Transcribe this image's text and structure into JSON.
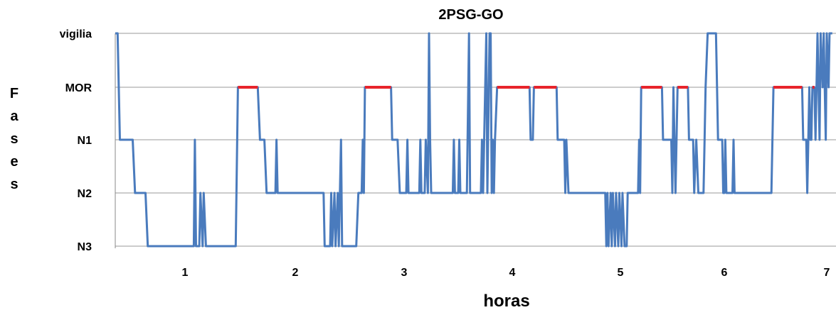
{
  "chart_data": {
    "type": "line",
    "title": "2PSG-GO",
    "xlabel": "horas",
    "ylabel": "Fases",
    "y_categories": [
      "N3",
      "N2",
      "N1",
      "MOR",
      "vigilia"
    ],
    "x_ticks": [
      "1",
      "2",
      "3",
      "4",
      "5",
      "6",
      "7"
    ],
    "xlim": [
      0.4,
      7.1
    ],
    "grid": true,
    "colors": {
      "series": "#4a7bbd",
      "mor": "#e8242b",
      "grid": "#999999",
      "axis": "#888888"
    },
    "series": [
      {
        "points": [
          [
            0.4,
            "vigilia"
          ],
          [
            0.42,
            "vigilia"
          ],
          [
            0.44,
            "N1"
          ],
          [
            0.55,
            "N1"
          ],
          [
            0.57,
            "N2"
          ],
          [
            0.66,
            "N2"
          ],
          [
            0.68,
            "N3"
          ],
          [
            1.08,
            "N3"
          ],
          [
            1.09,
            "N1"
          ],
          [
            1.1,
            "N3"
          ],
          [
            1.13,
            "N3"
          ],
          [
            1.14,
            "N2"
          ],
          [
            1.16,
            "N3"
          ],
          [
            1.17,
            "N2"
          ],
          [
            1.19,
            "N3"
          ],
          [
            1.46,
            "N3"
          ],
          [
            1.48,
            "MOR"
          ],
          [
            1.66,
            "MOR"
          ],
          [
            1.68,
            "N1"
          ],
          [
            1.72,
            "N1"
          ],
          [
            1.74,
            "N2"
          ],
          [
            1.82,
            "N2"
          ],
          [
            1.83,
            "N1"
          ],
          [
            1.84,
            "N2"
          ],
          [
            2.26,
            "N2"
          ],
          [
            2.27,
            "N3"
          ],
          [
            2.32,
            "N3"
          ],
          [
            2.33,
            "N2"
          ],
          [
            2.34,
            "N3"
          ],
          [
            2.36,
            "N2"
          ],
          [
            2.37,
            "N3"
          ],
          [
            2.39,
            "N2"
          ],
          [
            2.4,
            "N3"
          ],
          [
            2.42,
            "N1"
          ],
          [
            2.43,
            "N3"
          ],
          [
            2.56,
            "N3"
          ],
          [
            2.58,
            "N2"
          ],
          [
            2.61,
            "N2"
          ],
          [
            2.62,
            "N1"
          ],
          [
            2.63,
            "N2"
          ],
          [
            2.64,
            "MOR"
          ],
          [
            2.88,
            "MOR"
          ],
          [
            2.89,
            "N1"
          ],
          [
            2.94,
            "N1"
          ],
          [
            2.96,
            "N2"
          ],
          [
            3.02,
            "N2"
          ],
          [
            3.03,
            "N1"
          ],
          [
            3.04,
            "N2"
          ],
          [
            3.14,
            "N2"
          ],
          [
            3.15,
            "N1"
          ],
          [
            3.16,
            "N2"
          ],
          [
            3.19,
            "N2"
          ],
          [
            3.2,
            "N1"
          ],
          [
            3.22,
            "N2"
          ],
          [
            3.23,
            "vigilia"
          ],
          [
            3.24,
            "N1"
          ],
          [
            3.25,
            "N2"
          ],
          [
            3.45,
            "N2"
          ],
          [
            3.46,
            "N1"
          ],
          [
            3.47,
            "N2"
          ],
          [
            3.5,
            "N2"
          ],
          [
            3.51,
            "N1"
          ],
          [
            3.52,
            "N2"
          ],
          [
            3.58,
            "N2"
          ],
          [
            3.6,
            "vigilia"
          ],
          [
            3.61,
            "N2"
          ],
          [
            3.71,
            "N2"
          ],
          [
            3.72,
            "N1"
          ],
          [
            3.73,
            "N2"
          ],
          [
            3.74,
            "N1"
          ],
          [
            3.76,
            "vigilia"
          ],
          [
            3.77,
            "N2"
          ],
          [
            3.79,
            "vigilia"
          ],
          [
            3.8,
            "vigilia"
          ],
          [
            3.81,
            "N2"
          ],
          [
            3.82,
            "N1"
          ],
          [
            3.83,
            "N2"
          ],
          [
            3.84,
            "N1"
          ],
          [
            3.86,
            "MOR"
          ],
          [
            4.16,
            "MOR"
          ],
          [
            4.17,
            "N1"
          ],
          [
            4.19,
            "N1"
          ],
          [
            4.2,
            "MOR"
          ],
          [
            4.41,
            "MOR"
          ],
          [
            4.42,
            "N1"
          ],
          [
            4.48,
            "N1"
          ],
          [
            4.49,
            "N2"
          ],
          [
            4.5,
            "N1"
          ],
          [
            4.52,
            "N2"
          ],
          [
            4.86,
            "N2"
          ],
          [
            4.87,
            "N3"
          ],
          [
            4.88,
            "N2"
          ],
          [
            4.89,
            "N3"
          ],
          [
            4.91,
            "N2"
          ],
          [
            4.92,
            "N3"
          ],
          [
            4.93,
            "N2"
          ],
          [
            4.95,
            "N3"
          ],
          [
            4.96,
            "N2"
          ],
          [
            4.98,
            "N3"
          ],
          [
            4.99,
            "N2"
          ],
          [
            5.01,
            "N3"
          ],
          [
            5.02,
            "N2"
          ],
          [
            5.04,
            "N3"
          ],
          [
            5.06,
            "N3"
          ],
          [
            5.07,
            "N2"
          ],
          [
            5.17,
            "N2"
          ],
          [
            5.18,
            "N1"
          ],
          [
            5.19,
            "N2"
          ],
          [
            5.2,
            "MOR"
          ],
          [
            5.4,
            "MOR"
          ],
          [
            5.41,
            "N1"
          ],
          [
            5.49,
            "N1"
          ],
          [
            5.5,
            "N2"
          ],
          [
            5.51,
            "MOR"
          ],
          [
            5.52,
            "N1"
          ],
          [
            5.53,
            "N2"
          ],
          [
            5.55,
            "MOR"
          ],
          [
            5.65,
            "MOR"
          ],
          [
            5.66,
            "N1"
          ],
          [
            5.7,
            "N1"
          ],
          [
            5.71,
            "N2"
          ],
          [
            5.73,
            "N1"
          ],
          [
            5.75,
            "N2"
          ],
          [
            5.8,
            "N2"
          ],
          [
            5.81,
            "N1"
          ],
          [
            5.82,
            "MOR"
          ],
          [
            5.84,
            "vigilia"
          ],
          [
            5.92,
            "vigilia"
          ],
          [
            5.93,
            "MOR"
          ],
          [
            5.94,
            "N1"
          ],
          [
            5.98,
            "N1"
          ],
          [
            5.99,
            "N2"
          ],
          [
            6.0,
            "N2"
          ],
          [
            6.01,
            "N1"
          ],
          [
            6.02,
            "N2"
          ],
          [
            6.08,
            "N2"
          ],
          [
            6.09,
            "N1"
          ],
          [
            6.1,
            "N2"
          ],
          [
            6.46,
            "N2"
          ],
          [
            6.48,
            "MOR"
          ],
          [
            6.76,
            "MOR"
          ],
          [
            6.77,
            "N1"
          ],
          [
            6.8,
            "N1"
          ],
          [
            6.81,
            "N2"
          ],
          [
            6.82,
            "N1"
          ],
          [
            6.83,
            "MOR"
          ],
          [
            6.84,
            "N1"
          ],
          [
            6.85,
            "N1"
          ],
          [
            6.86,
            "MOR"
          ],
          [
            6.88,
            "MOR"
          ],
          [
            6.89,
            "N1"
          ],
          [
            6.9,
            "MOR"
          ],
          [
            6.91,
            "vigilia"
          ],
          [
            6.93,
            "N1"
          ],
          [
            6.94,
            "vigilia"
          ],
          [
            6.96,
            "MOR"
          ],
          [
            6.97,
            "vigilia"
          ],
          [
            6.99,
            "N1"
          ],
          [
            7.0,
            "vigilia"
          ],
          [
            7.02,
            "MOR"
          ],
          [
            7.03,
            "vigilia"
          ],
          [
            7.06,
            "vigilia"
          ]
        ]
      }
    ],
    "mor_segments": [
      [
        1.48,
        1.66
      ],
      [
        2.64,
        2.88
      ],
      [
        3.86,
        4.16
      ],
      [
        4.2,
        4.41
      ],
      [
        5.2,
        5.4
      ],
      [
        5.55,
        5.65
      ],
      [
        6.48,
        6.76
      ],
      [
        6.86,
        6.88
      ]
    ]
  }
}
